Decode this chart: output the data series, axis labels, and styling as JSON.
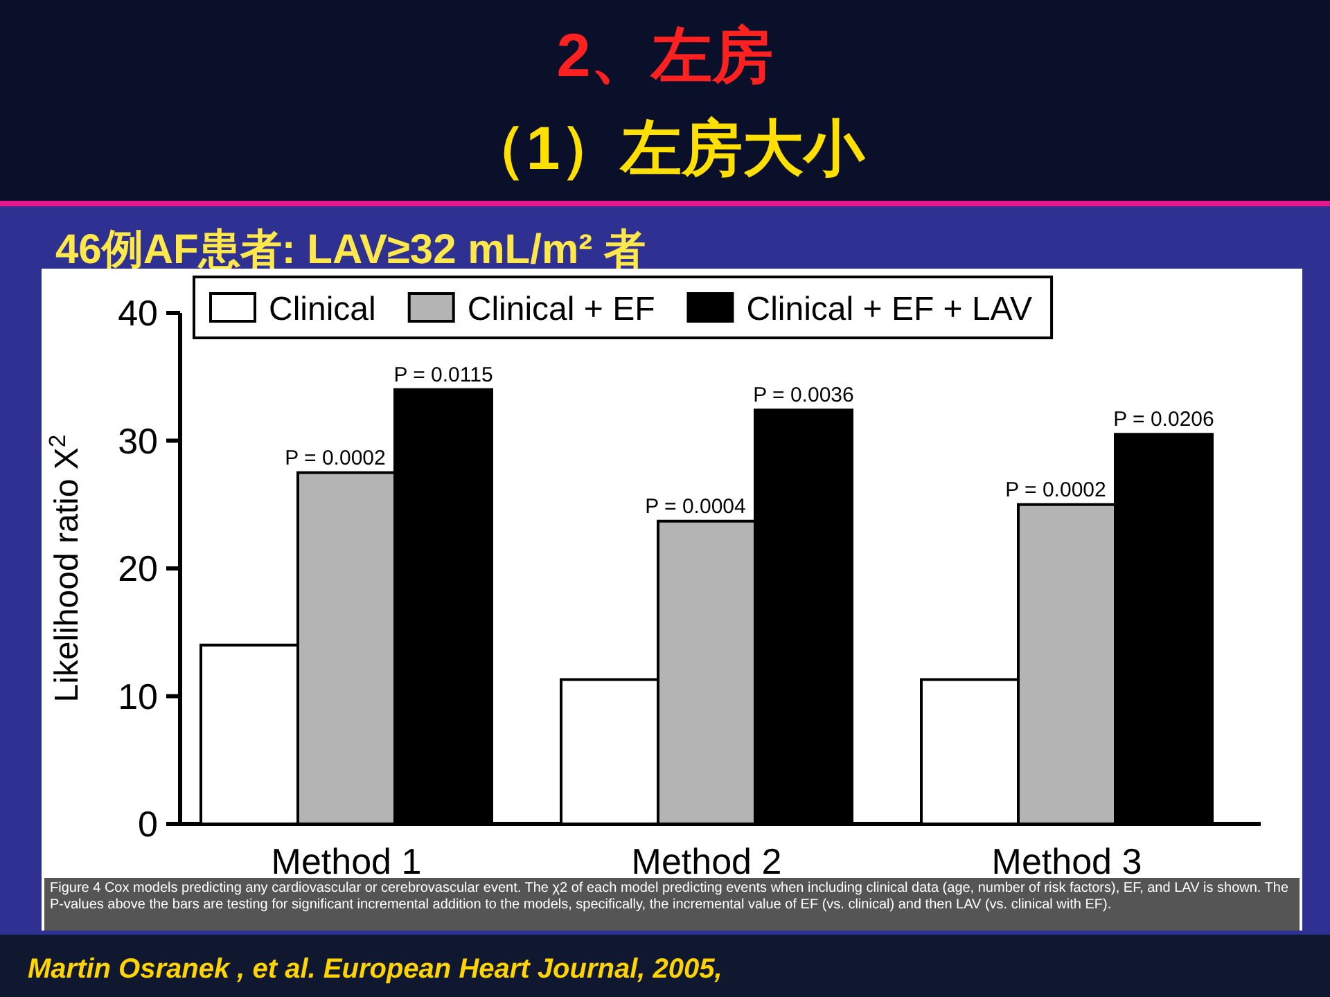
{
  "chart_data": {
    "type": "bar",
    "title": "2、左房",
    "subtitle": "（1）左房大小",
    "ylabel": "Likelihood ratio X$^{2}$",
    "categories": [
      "Method 1",
      "Method 2",
      "Method 3"
    ],
    "series": [
      {
        "name": "Clinical",
        "color": "#ffffff",
        "values": [
          14.0,
          11.3,
          11.3
        ]
      },
      {
        "name": "Clinical + EF",
        "color": "#b4b4b4",
        "values": [
          27.5,
          23.7,
          25.0
        ]
      },
      {
        "name": "Clinical + EF + LAV",
        "color": "#000000",
        "values": [
          34.0,
          32.4,
          30.5
        ]
      }
    ],
    "ylim": [
      0,
      40
    ],
    "yticks": [
      0,
      10,
      20,
      30,
      40
    ],
    "legend": "top",
    "grid": false,
    "annotations": [
      "46例AF患者: LAV≥32 mL/m² 者",
      "Figure 4   Cox models predicting any cardiovascular or cerebrovascular event. The χ2 of each model predicting events when including clinical data (age, number of risk factors), EF, and LAV is shown. The P-values above the bars are testing for significant incremental addition to the models, specifically, the incremental value of EF (vs. clinical) and then LAV (vs. clinical with EF).",
      "Martin Osranek ,  et al. European Heart Journal, 2005,",
      "P = 0.0002",
      "P = 0.0115",
      "P = 0.0004",
      "P = 0.0036",
      "P = 0.0002",
      "P = 0.0206"
    ]
  }
}
